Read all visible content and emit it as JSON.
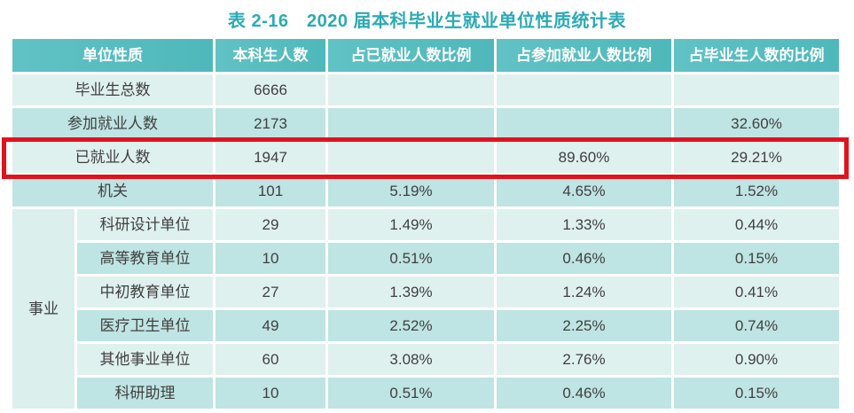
{
  "title": "表 2-16　2020 届本科毕业生就业单位性质统计表",
  "colors": {
    "header_teal": "#54BCBE",
    "row_light": "#DFF1EF",
    "row_dark": "#BEE4E3",
    "group_cell": "#DBEFED",
    "title_teal": "#2BAAB5",
    "highlight_red": "#E2121D"
  },
  "table": {
    "headers": {
      "unit_type": "单位性质",
      "undergrad_count": "本科生人数",
      "pct_of_employed": "占已就业人数比例",
      "pct_of_participating": "占参加就业人数比例",
      "pct_of_graduates": "占毕业生人数的比例"
    },
    "group_label": "事业",
    "rows": [
      {
        "label": "毕业生总数",
        "count": "6666",
        "pct_employed": "",
        "pct_participating": "",
        "pct_graduates": ""
      },
      {
        "label": "参加就业人数",
        "count": "2173",
        "pct_employed": "",
        "pct_participating": "",
        "pct_graduates": "32.60%"
      },
      {
        "label": "已就业人数",
        "count": "1947",
        "pct_employed": "",
        "pct_participating": "89.60%",
        "pct_graduates": "29.21%",
        "highlighted": true
      },
      {
        "label": "机关",
        "count": "101",
        "pct_employed": "5.19%",
        "pct_participating": "4.65%",
        "pct_graduates": "1.52%"
      },
      {
        "label": "科研设计单位",
        "count": "29",
        "pct_employed": "1.49%",
        "pct_participating": "1.33%",
        "pct_graduates": "0.44%"
      },
      {
        "label": "高等教育单位",
        "count": "10",
        "pct_employed": "0.51%",
        "pct_participating": "0.46%",
        "pct_graduates": "0.15%"
      },
      {
        "label": "中初教育单位",
        "count": "27",
        "pct_employed": "1.39%",
        "pct_participating": "1.24%",
        "pct_graduates": "0.41%"
      },
      {
        "label": "医疗卫生单位",
        "count": "49",
        "pct_employed": "2.52%",
        "pct_participating": "2.25%",
        "pct_graduates": "0.74%"
      },
      {
        "label": "其他事业单位",
        "count": "60",
        "pct_employed": "3.08%",
        "pct_participating": "2.76%",
        "pct_graduates": "0.90%"
      },
      {
        "label": "科研助理",
        "count": "10",
        "pct_employed": "0.51%",
        "pct_participating": "0.46%",
        "pct_graduates": "0.15%"
      }
    ]
  }
}
